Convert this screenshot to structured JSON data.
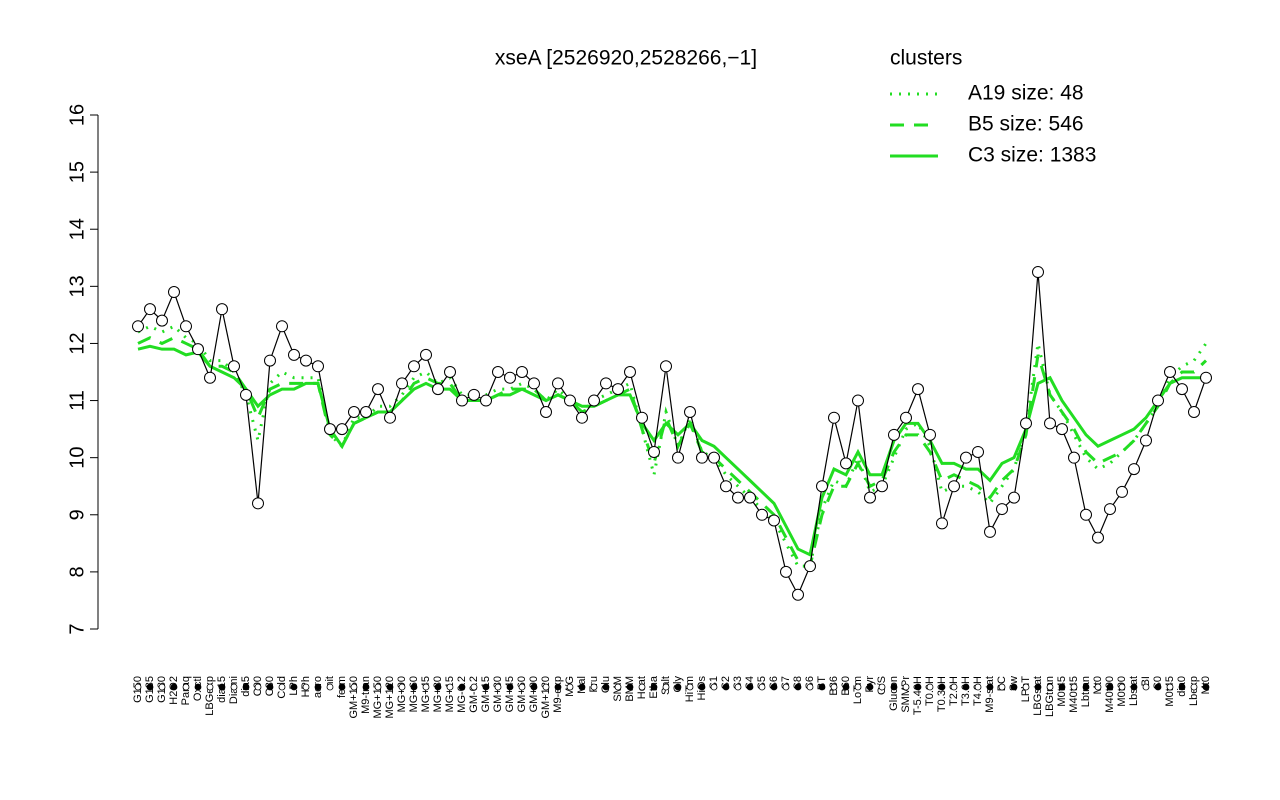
{
  "chart_data": {
    "type": "line",
    "title": "xseA [2526920,2528266,−1]",
    "legend_title": "clusters",
    "legend_position": "topright",
    "legend_color": "#33ee33",
    "ylim": [
      7,
      16
    ],
    "yticks": [
      7,
      8,
      9,
      10,
      11,
      12,
      13,
      14,
      15,
      16
    ],
    "categories": [
      "G150",
      "G135",
      "G180",
      "H2O2",
      "Paraq",
      "Oxctl",
      "LBGexp",
      "dia15",
      "Diami",
      "dia5",
      "C90",
      "C30",
      "Cold",
      "LPh",
      "HPh",
      "aero",
      "nit",
      "ferm",
      "GM+150",
      "M9-tran",
      "MG+150",
      "MG+120",
      "MG+90",
      "MG+60",
      "MG+45",
      "MG+30",
      "MG+15",
      "MG-0.2",
      "GM-0.2",
      "GM+15",
      "GM+30",
      "GM+45",
      "GM+60",
      "GM+90",
      "GM+120",
      "M9-exp",
      "M/G",
      "Mal",
      "Fru",
      "Glu",
      "SMM",
      "BMM",
      "Heat",
      "Etha",
      "Salt",
      "Gly",
      "HiTm",
      "HiOs",
      "S1",
      "S2",
      "S3",
      "S4",
      "S5",
      "S6",
      "S7",
      "S8",
      "S6",
      "BT",
      "B36",
      "B60",
      "LoTm",
      "Pyr",
      "G/S",
      "Glucon",
      "SMMPr",
      "T-5.40H",
      "T0.0H",
      "T0.30H",
      "T2.0H",
      "T3.0H",
      "T4.0H",
      "M9-stat",
      "BC",
      "Sw",
      "LPhT",
      "LBGstat",
      "LBGtran",
      "M0t45",
      "M40t45",
      "Lbtran",
      "Mt0",
      "M40t90",
      "M0t90",
      "Lbstat",
      "BI",
      "S0",
      "M0t45",
      "dia0",
      "Lbexp",
      "Mt0"
    ],
    "values": [
      12.3,
      12.6,
      12.4,
      12.9,
      12.3,
      11.9,
      11.4,
      12.6,
      11.6,
      11.1,
      9.2,
      11.7,
      12.3,
      11.8,
      11.7,
      11.6,
      10.5,
      10.5,
      10.8,
      10.8,
      11.2,
      10.7,
      11.3,
      11.6,
      11.8,
      11.2,
      11.5,
      11.0,
      11.1,
      11.0,
      11.5,
      11.4,
      11.5,
      11.3,
      10.8,
      11.3,
      11.0,
      10.7,
      11.0,
      11.3,
      11.2,
      11.5,
      10.7,
      10.1,
      11.6,
      10.0,
      10.8,
      10.0,
      10.0,
      9.5,
      9.3,
      9.3,
      9.0,
      8.9,
      8.0,
      7.6,
      8.1,
      9.5,
      10.7,
      9.9,
      11.0,
      9.3,
      9.5,
      10.4,
      10.7,
      11.2,
      10.4,
      8.85,
      9.5,
      10.0,
      10.1,
      8.7,
      9.1,
      9.3,
      10.6,
      13.25,
      10.6,
      10.5,
      10.0,
      9.0,
      8.6,
      9.1,
      9.4,
      9.8,
      10.3,
      11.0,
      11.5,
      11.2,
      10.8,
      11.4
    ],
    "color": "#000000",
    "point_color": "#ffffff",
    "series": [
      {
        "name": "A19 size: 48",
        "color": "#22dd22",
        "dash": "dotted",
        "values": [
          12.2,
          12.3,
          12.2,
          12.3,
          12.1,
          12.0,
          11.7,
          11.7,
          11.5,
          11.1,
          10.3,
          11.3,
          11.5,
          11.4,
          11.4,
          11.4,
          10.4,
          10.2,
          10.7,
          10.7,
          10.9,
          10.9,
          11.1,
          11.4,
          11.5,
          11.3,
          11.4,
          11.1,
          11.1,
          11.1,
          11.2,
          11.2,
          11.3,
          11.2,
          11.0,
          11.2,
          11.0,
          10.8,
          11.0,
          11.1,
          11.2,
          11.3,
          10.5,
          9.7,
          10.8,
          10.2,
          10.7,
          10.1,
          10.0,
          9.7,
          9.5,
          9.3,
          9.1,
          8.9,
          8.5,
          8.1,
          8.1,
          9.1,
          9.6,
          9.5,
          10.0,
          9.4,
          9.5,
          10.0,
          10.5,
          10.6,
          10.2,
          9.4,
          9.5,
          9.5,
          9.4,
          9.2,
          9.5,
          9.8,
          10.5,
          12.0,
          11.1,
          10.8,
          10.4,
          10.0,
          9.8,
          9.9,
          10.1,
          10.3,
          10.6,
          10.9,
          11.4,
          11.6,
          11.7,
          12.0
        ]
      },
      {
        "name": "B5 size: 546",
        "color": "#22dd22",
        "dash": "dashed",
        "values": [
          12.0,
          12.1,
          12.0,
          12.1,
          12.0,
          11.9,
          11.6,
          11.6,
          11.5,
          11.2,
          10.7,
          11.2,
          11.3,
          11.3,
          11.3,
          11.3,
          10.4,
          10.2,
          10.6,
          10.7,
          10.8,
          10.8,
          11.0,
          11.3,
          11.4,
          11.3,
          11.3,
          11.0,
          11.0,
          11.0,
          11.1,
          11.2,
          11.2,
          11.2,
          11.0,
          11.1,
          11.0,
          10.8,
          10.9,
          11.0,
          11.1,
          11.2,
          10.5,
          9.9,
          10.7,
          10.2,
          10.6,
          10.1,
          10.0,
          9.8,
          9.6,
          9.4,
          9.2,
          9.0,
          8.6,
          8.2,
          8.1,
          9.0,
          9.5,
          9.5,
          9.9,
          9.5,
          9.6,
          10.1,
          10.4,
          10.4,
          10.1,
          9.6,
          9.7,
          9.6,
          9.5,
          9.3,
          9.6,
          9.8,
          10.4,
          11.8,
          11.1,
          10.8,
          10.5,
          10.1,
          9.9,
          10.0,
          10.1,
          10.3,
          10.6,
          10.9,
          11.3,
          11.5,
          11.5,
          11.7
        ]
      },
      {
        "name": "C3 size: 1383",
        "color": "#22dd22",
        "dash": "solid",
        "values": [
          11.9,
          11.95,
          11.9,
          11.9,
          11.8,
          11.85,
          11.6,
          11.5,
          11.4,
          11.2,
          10.9,
          11.1,
          11.2,
          11.2,
          11.3,
          11.3,
          10.5,
          10.2,
          10.6,
          10.7,
          10.8,
          10.8,
          11.0,
          11.2,
          11.3,
          11.2,
          11.2,
          11.0,
          11.0,
          11.0,
          11.1,
          11.1,
          11.2,
          11.1,
          11.0,
          11.1,
          11.0,
          10.9,
          10.9,
          11.0,
          11.1,
          11.1,
          10.6,
          10.3,
          10.6,
          10.4,
          10.6,
          10.3,
          10.2,
          10.0,
          9.8,
          9.6,
          9.4,
          9.2,
          8.8,
          8.4,
          8.3,
          9.3,
          9.8,
          9.7,
          10.1,
          9.7,
          9.7,
          10.3,
          10.6,
          10.6,
          10.3,
          9.9,
          9.9,
          9.8,
          9.8,
          9.6,
          9.9,
          10.0,
          10.5,
          11.3,
          11.4,
          11.0,
          10.7,
          10.4,
          10.2,
          10.3,
          10.4,
          10.5,
          10.7,
          11.0,
          11.3,
          11.4,
          11.4,
          11.4
        ]
      }
    ]
  }
}
